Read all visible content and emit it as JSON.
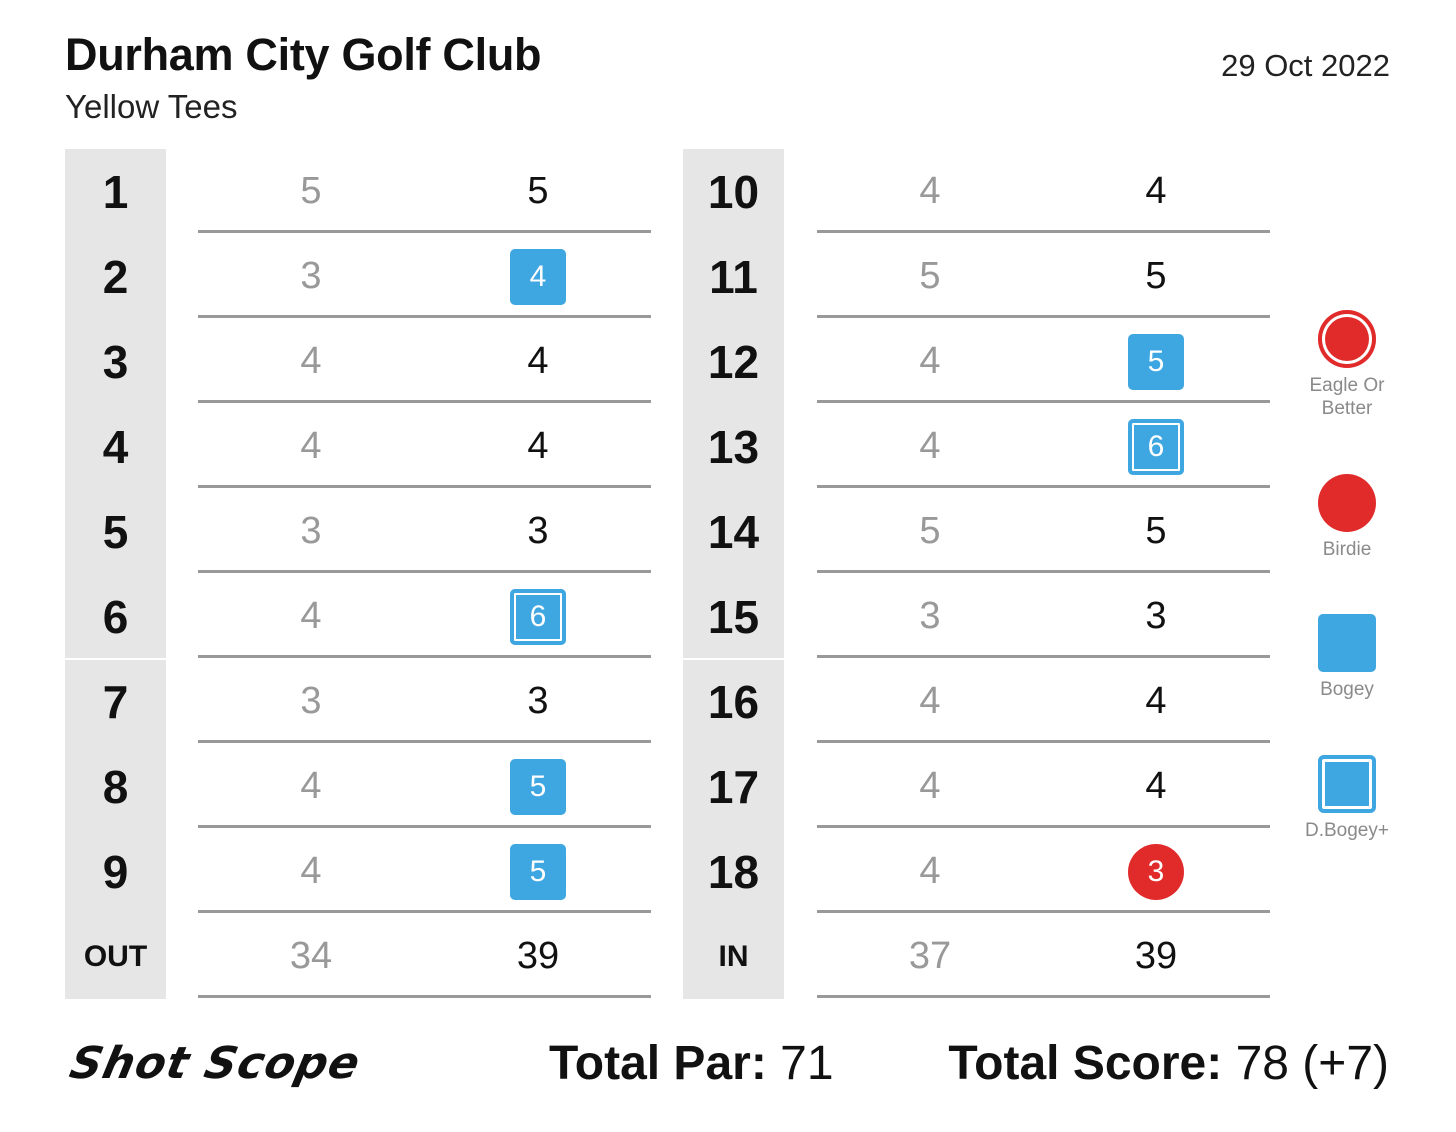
{
  "header": {
    "course_name": "Durham City Golf Club",
    "tees": "Yellow Tees",
    "date": "29 Oct 2022"
  },
  "front_nine": [
    {
      "hole": "1",
      "par": "5",
      "score": "5",
      "result": "par"
    },
    {
      "hole": "2",
      "par": "3",
      "score": "4",
      "result": "bogey"
    },
    {
      "hole": "3",
      "par": "4",
      "score": "4",
      "result": "par"
    },
    {
      "hole": "4",
      "par": "4",
      "score": "4",
      "result": "par"
    },
    {
      "hole": "5",
      "par": "3",
      "score": "3",
      "result": "par"
    },
    {
      "hole": "6",
      "par": "4",
      "score": "6",
      "result": "double-bogey"
    },
    {
      "hole": "7",
      "par": "3",
      "score": "3",
      "result": "par"
    },
    {
      "hole": "8",
      "par": "4",
      "score": "5",
      "result": "bogey"
    },
    {
      "hole": "9",
      "par": "4",
      "score": "5",
      "result": "bogey"
    }
  ],
  "front_total": {
    "label": "OUT",
    "par": "34",
    "score": "39"
  },
  "back_nine": [
    {
      "hole": "10",
      "par": "4",
      "score": "4",
      "result": "par"
    },
    {
      "hole": "11",
      "par": "5",
      "score": "5",
      "result": "par"
    },
    {
      "hole": "12",
      "par": "4",
      "score": "5",
      "result": "bogey"
    },
    {
      "hole": "13",
      "par": "4",
      "score": "6",
      "result": "double-bogey"
    },
    {
      "hole": "14",
      "par": "5",
      "score": "5",
      "result": "par"
    },
    {
      "hole": "15",
      "par": "3",
      "score": "3",
      "result": "par"
    },
    {
      "hole": "16",
      "par": "4",
      "score": "4",
      "result": "par"
    },
    {
      "hole": "17",
      "par": "4",
      "score": "4",
      "result": "par"
    },
    {
      "hole": "18",
      "par": "4",
      "score": "3",
      "result": "birdie"
    }
  ],
  "back_total": {
    "label": "IN",
    "par": "37",
    "score": "39"
  },
  "legend": [
    {
      "key": "eagle",
      "label_lines": [
        "Eagle Or",
        "Better"
      ],
      "icon": "eagle-circle-icon"
    },
    {
      "key": "birdie",
      "label_lines": [
        "Birdie"
      ],
      "icon": "birdie-circle-icon"
    },
    {
      "key": "bogey",
      "label_lines": [
        "Bogey"
      ],
      "icon": "bogey-square-icon"
    },
    {
      "key": "dbogey",
      "label_lines": [
        "D.Bogey+"
      ],
      "icon": "double-bogey-square-icon"
    }
  ],
  "footer": {
    "brand": "Shot Scope",
    "total_par_label": "Total Par:",
    "total_par_value": "71",
    "total_score_label": "Total Score:",
    "total_score_value": "78 (+7)"
  },
  "colors": {
    "bogey": "#3ea6e0",
    "birdie": "#e12b2b",
    "par_text": "#999999",
    "hole_bar": "#e6e6e6",
    "rule": "#999999"
  }
}
